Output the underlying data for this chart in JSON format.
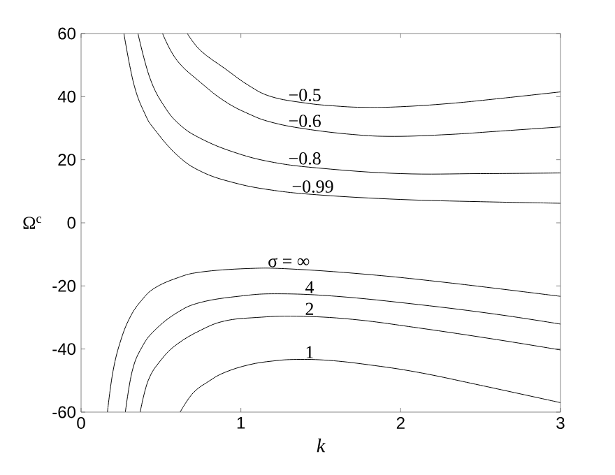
{
  "chart_data": {
    "type": "line",
    "xlabel": "k",
    "ylabel": "Ω$^{c}$",
    "xlim": [
      0,
      3
    ],
    "ylim": [
      -60,
      60
    ],
    "xticks": [
      0,
      1,
      2,
      3
    ],
    "yticks": [
      -60,
      -40,
      -20,
      0,
      20,
      40,
      60
    ],
    "grid": false,
    "marker": "none",
    "line_style": "solid",
    "series": [
      {
        "color": "#000000",
        "x": [
          0.665,
          0.75,
          0.9,
          1.05,
          1.19,
          1.4,
          1.6,
          1.78,
          2.0,
          2.3,
          2.6,
          3.0
        ],
        "values": [
          60,
          54.5,
          48.9,
          43.5,
          40,
          38,
          37,
          36.6,
          36.8,
          37.8,
          39.3,
          41.5
        ]
      },
      {
        "color": "#000000",
        "x": [
          0.51,
          0.6,
          0.75,
          0.9,
          1.05,
          1.19,
          1.4,
          1.7,
          1.96,
          2.3,
          2.6,
          3.0
        ],
        "values": [
          60,
          51.5,
          44.4,
          38.5,
          34.5,
          31.9,
          29.8,
          28,
          27.4,
          28,
          29,
          30.4
        ]
      },
      {
        "color": "#000000",
        "x": [
          0.356,
          0.43,
          0.52,
          0.62,
          0.75,
          0.95,
          1.19,
          1.5,
          2.0,
          2.5,
          3.0
        ],
        "values": [
          60,
          46,
          37,
          31,
          26.7,
          22.5,
          19.3,
          17.3,
          15.6,
          15.6,
          15.8
        ]
      },
      {
        "color": "#000000",
        "x": [
          0.268,
          0.33,
          0.4,
          0.46,
          0.6,
          0.75,
          0.95,
          1.19,
          1.5,
          2.0,
          2.5,
          3.0
        ],
        "values": [
          60,
          44,
          34.5,
          29.6,
          21.5,
          16.3,
          12.8,
          10.4,
          8.8,
          7.4,
          6.7,
          6.2
        ]
      },
      {
        "color": "#000000",
        "x": [
          0.165,
          0.2,
          0.25,
          0.31,
          0.38,
          0.46,
          0.6,
          0.75,
          1.04,
          1.3,
          1.78,
          2.3,
          3.0
        ],
        "values": [
          -60,
          -47,
          -37,
          -29.6,
          -24.5,
          -20.7,
          -17.5,
          -15.6,
          -14.5,
          -14.6,
          -16.3,
          -19,
          -23.3
        ]
      },
      {
        "color": "#000000",
        "x": [
          0.277,
          0.32,
          0.38,
          0.46,
          0.6,
          0.75,
          1.0,
          1.23,
          1.6,
          2.11,
          2.6,
          3.0
        ],
        "values": [
          -60,
          -47,
          -39.5,
          -34.1,
          -28.5,
          -25.2,
          -23.2,
          -22.5,
          -23.3,
          -25.9,
          -29,
          -32.1
        ]
      },
      {
        "color": "#000000",
        "x": [
          0.37,
          0.42,
          0.5,
          0.6,
          0.75,
          0.9,
          1.1,
          1.35,
          1.7,
          2.11,
          2.6,
          3.0
        ],
        "values": [
          -60,
          -50,
          -43.5,
          -38.5,
          -34,
          -31.1,
          -30,
          -29.6,
          -30.6,
          -33.3,
          -37,
          -40.3
        ]
      },
      {
        "color": "#000000",
        "x": [
          0.62,
          0.7,
          0.8,
          0.9,
          1.05,
          1.2,
          1.35,
          1.55,
          1.8,
          2.11,
          2.5,
          3.0
        ],
        "values": [
          -60,
          -54,
          -50.2,
          -47.4,
          -45,
          -43.8,
          -43.3,
          -43.6,
          -45,
          -47.4,
          -51.5,
          -57.0
        ]
      }
    ],
    "annotations": [
      {
        "text": "−0.5",
        "x": 1.4,
        "y": 38
      },
      {
        "text": "−0.6",
        "x": 1.4,
        "y": 29.8
      },
      {
        "text": "−0.8",
        "x": 1.4,
        "y": 17.9
      },
      {
        "text": "−0.99",
        "x": 1.45,
        "y": 9.0
      },
      {
        "text": "σ = ∞",
        "x": 1.3,
        "y": -14.6
      },
      {
        "text": "4",
        "x": 1.43,
        "y": -22.8
      },
      {
        "text": "2",
        "x": 1.43,
        "y": -29.7
      },
      {
        "text": "1",
        "x": 1.43,
        "y": -43.4
      }
    ]
  }
}
